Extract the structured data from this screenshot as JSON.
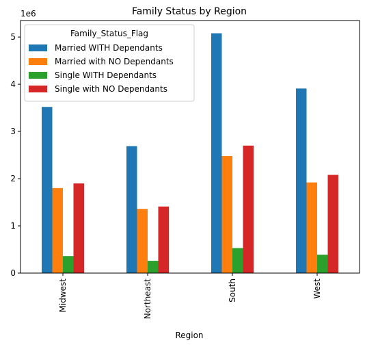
{
  "chart_data": {
    "type": "bar",
    "title": "Family Status by Region",
    "xlabel": "Region",
    "ylabel": "",
    "y_multiplier": "1e6",
    "categories": [
      "Midwest",
      "Northeast",
      "South",
      "West"
    ],
    "series": [
      {
        "name": "Married WITH Dependants",
        "color": "#1f77b4",
        "values": [
          3520000,
          2690000,
          5080000,
          3910000
        ]
      },
      {
        "name": "Married with NO Dependants",
        "color": "#ff7f0e",
        "values": [
          1800000,
          1360000,
          2480000,
          1920000
        ]
      },
      {
        "name": "Single WITH Dependants",
        "color": "#2ca02c",
        "values": [
          360000,
          260000,
          530000,
          390000
        ]
      },
      {
        "name": "Single with NO Dependants",
        "color": "#d62728",
        "values": [
          1900000,
          1410000,
          2700000,
          2080000
        ]
      }
    ],
    "ylim": [
      0,
      5350000
    ],
    "y_ticks": [
      0,
      1000000,
      2000000,
      3000000,
      4000000,
      5000000
    ],
    "y_tick_labels": [
      "0",
      "1",
      "2",
      "3",
      "4",
      "5"
    ],
    "grid": false,
    "legend": {
      "title": "Family_Status_Flag",
      "placement": "top-left"
    }
  }
}
